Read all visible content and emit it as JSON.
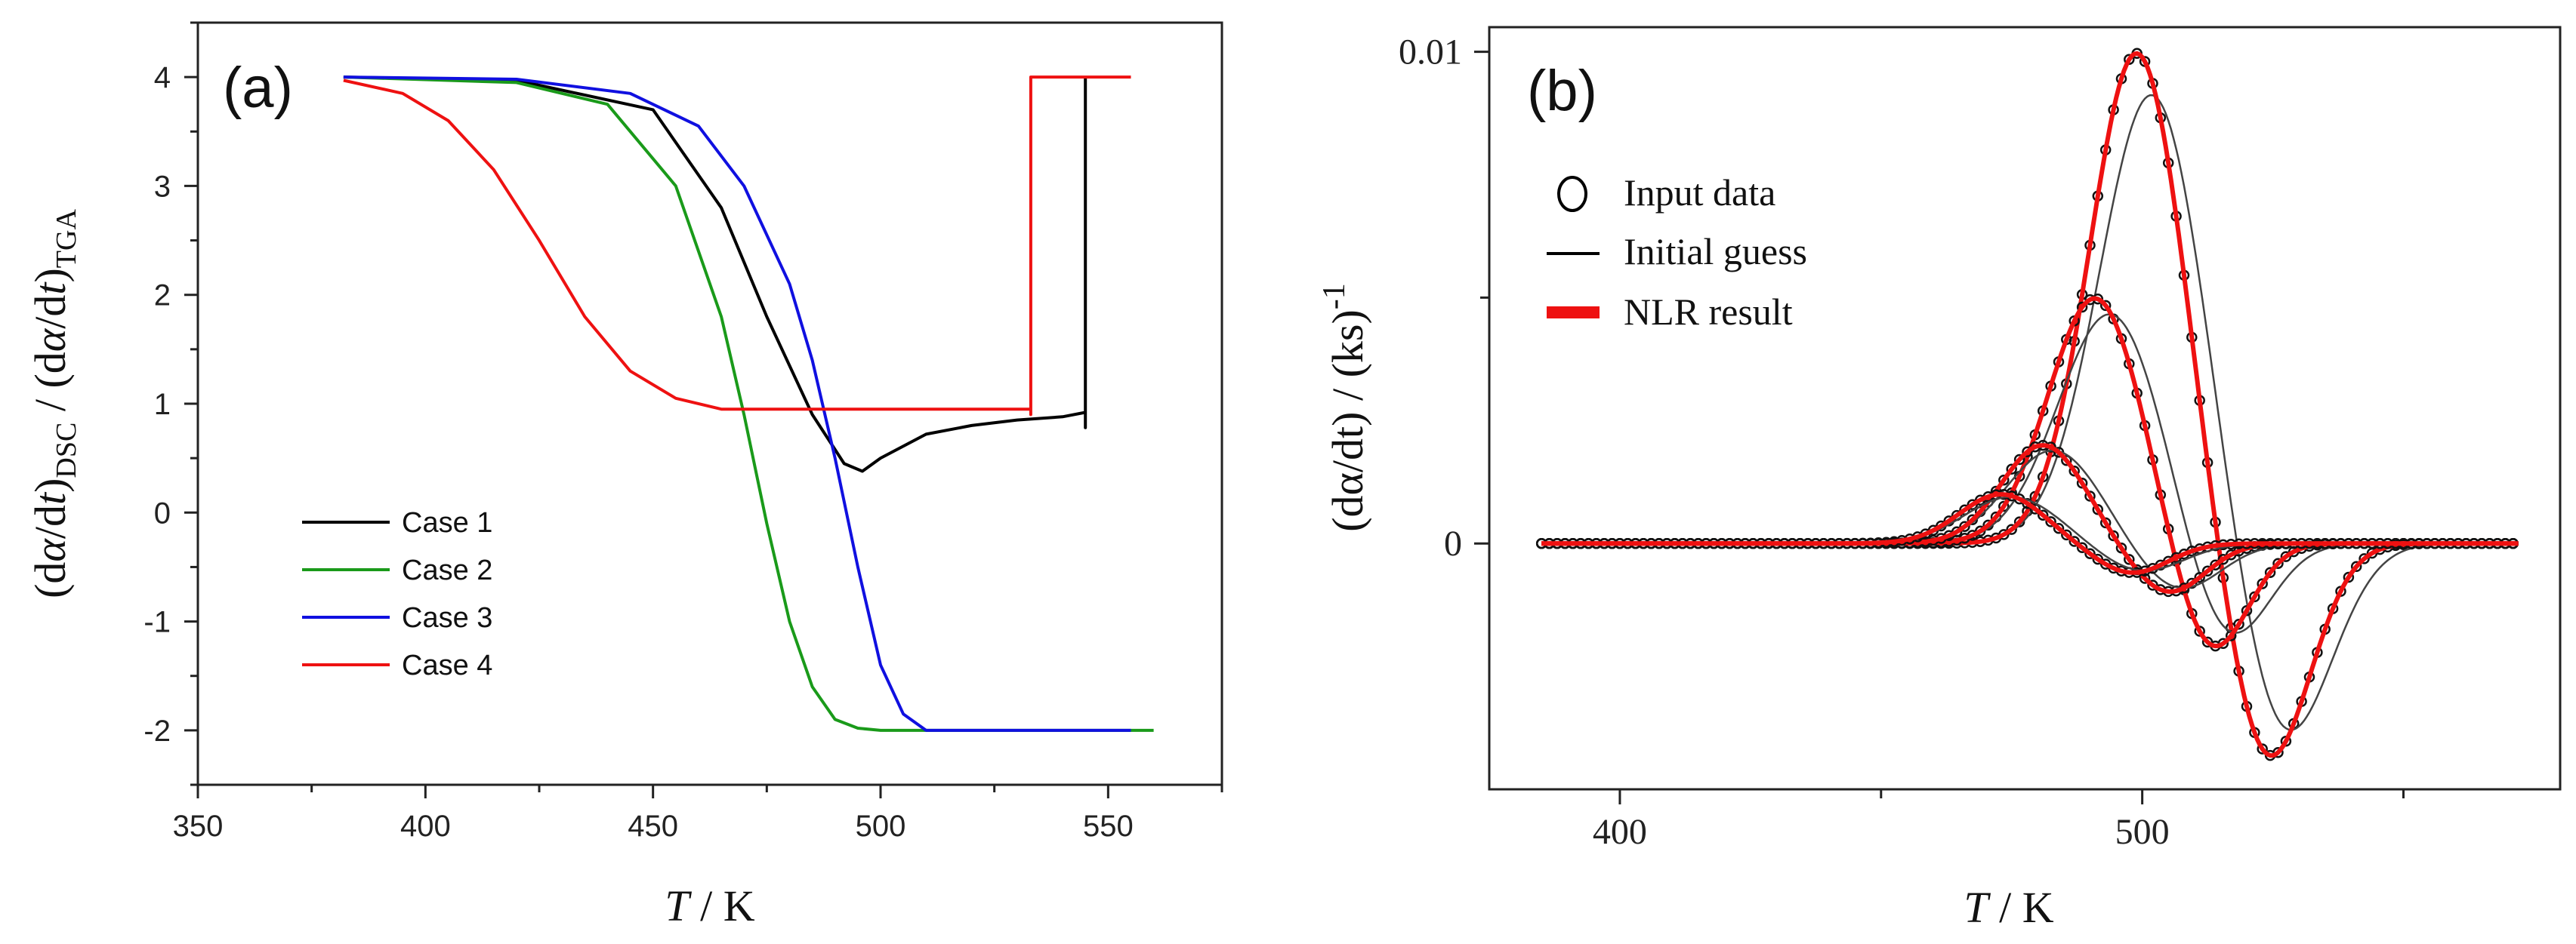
{
  "chart_data": [
    {
      "panel_label": "(a)",
      "type": "line",
      "xlabel_italic": "T",
      "xlabel_rest": " / K",
      "ylabel": "(dα/dt)DSC / (dα/dt)TGA",
      "ylabel_parts": {
        "num": "(d",
        "alpha": "α",
        "mid": "/d",
        "t": "t",
        "close": ")",
        "sub1": "DSC",
        "slash": " / (d",
        "alpha2": "α",
        "mid2": "/d",
        "t2": "t",
        "close2": ")",
        "sub2": "TGA"
      },
      "xlim": [
        350,
        575
      ],
      "ylim": [
        -2.5,
        4.5
      ],
      "xticks": [
        350,
        400,
        450,
        500,
        550
      ],
      "yticks": [
        -2,
        -1,
        0,
        1,
        2,
        3,
        4
      ],
      "legend_position": "bottom-left",
      "series": [
        {
          "name": "Case 1",
          "color": "#000000"
        },
        {
          "name": "Case 2",
          "color": "#1a9a1a"
        },
        {
          "name": "Case 3",
          "color": "#1010e0"
        },
        {
          "name": "Case 4",
          "color": "#ee1111"
        }
      ],
      "curves": {
        "Case 1": {
          "x": [
            382,
            420,
            450,
            465,
            475,
            485,
            492,
            496,
            500,
            510,
            520,
            530,
            540,
            545,
            545,
            545
          ],
          "y": [
            4.0,
            3.97,
            3.7,
            2.8,
            1.8,
            0.9,
            0.45,
            0.38,
            0.5,
            0.72,
            0.8,
            0.85,
            0.88,
            0.92,
            0.78,
            4.0
          ]
        },
        "Case 2": {
          "x": [
            382,
            420,
            440,
            455,
            465,
            470,
            475,
            480,
            485,
            490,
            495,
            500,
            520,
            560
          ],
          "y": [
            4.0,
            3.95,
            3.75,
            3.0,
            1.8,
            0.9,
            -0.1,
            -1.0,
            -1.6,
            -1.9,
            -1.98,
            -2.0,
            -2.0,
            -2.0
          ]
        },
        "Case 3": {
          "x": [
            382,
            420,
            445,
            460,
            470,
            480,
            485,
            490,
            495,
            500,
            505,
            510,
            530,
            555
          ],
          "y": [
            4.0,
            3.98,
            3.85,
            3.55,
            3.0,
            2.1,
            1.4,
            0.5,
            -0.5,
            -1.4,
            -1.85,
            -2.0,
            -2.0,
            -2.0
          ]
        },
        "Case 4": {
          "x": [
            382,
            395,
            405,
            415,
            425,
            435,
            445,
            455,
            465,
            480,
            500,
            520,
            533,
            533,
            533,
            555
          ],
          "y": [
            3.97,
            3.85,
            3.6,
            3.15,
            2.5,
            1.8,
            1.3,
            1.05,
            0.95,
            0.95,
            0.95,
            0.95,
            0.95,
            0.9,
            4.0,
            4.0
          ]
        }
      }
    },
    {
      "panel_label": "(b)",
      "type": "line",
      "xlabel_italic": "T",
      "xlabel_rest": " / K",
      "ylabel": "(dα/dt) / (ks)-1",
      "ylabel_main": "(dα/dt) / (ks)",
      "ylabel_sup": "-1",
      "xlim": [
        375,
        580
      ],
      "ylim": [
        -0.005,
        0.0105
      ],
      "xticks": [
        400,
        500
      ],
      "xtick_labels": [
        "400",
        "500"
      ],
      "minor_xticks": [
        450,
        550
      ],
      "yticks": [
        0,
        0.01
      ],
      "ytick_labels": [
        "0",
        "0.01"
      ],
      "minor_yticks": [
        0.005
      ],
      "legend_position": "top-left",
      "legend": [
        {
          "name": "Input data",
          "marker": "circle",
          "color": "#000000"
        },
        {
          "name": "Initial guess",
          "marker": "line",
          "color": "#000000"
        },
        {
          "name": "NLR result",
          "marker": "thick-line",
          "color": "#ee1111"
        }
      ],
      "peaks": [
        {
          "pos_center": 499,
          "pos_amp": 0.01,
          "pos_width": 9,
          "neg_center": 524,
          "neg_amp": -0.0045,
          "neg_width": 8,
          "guess_shift": 3,
          "guess_scale": 0.92
        },
        {
          "pos_center": 491,
          "pos_amp": 0.005,
          "pos_width": 9,
          "neg_center": 513,
          "neg_amp": -0.0023,
          "neg_width": 7,
          "guess_shift": 3,
          "guess_scale": 0.94
        },
        {
          "pos_center": 481,
          "pos_amp": 0.002,
          "pos_width": 8,
          "neg_center": 505,
          "neg_amp": -0.001,
          "neg_width": 7,
          "guess_shift": 2,
          "guess_scale": 0.95
        },
        {
          "pos_center": 473,
          "pos_amp": 0.001,
          "pos_width": 8,
          "neg_center": 498,
          "neg_amp": -0.0006,
          "neg_width": 7,
          "guess_shift": 2,
          "guess_scale": 0.95
        }
      ]
    }
  ]
}
